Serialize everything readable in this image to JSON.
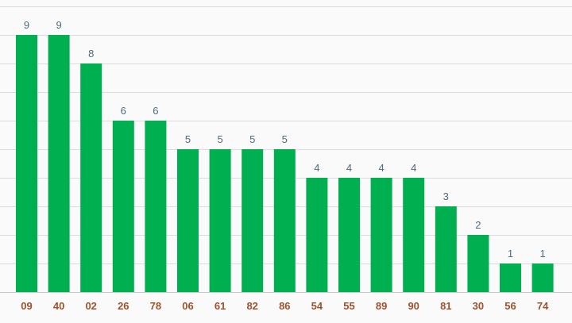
{
  "chart_data": {
    "type": "bar",
    "categories": [
      "09",
      "40",
      "02",
      "26",
      "78",
      "06",
      "61",
      "82",
      "86",
      "54",
      "55",
      "89",
      "90",
      "81",
      "30",
      "56",
      "74"
    ],
    "values": [
      9,
      9,
      8,
      6,
      6,
      5,
      5,
      5,
      5,
      4,
      4,
      4,
      4,
      3,
      2,
      1,
      1
    ],
    "title": "",
    "xlabel": "",
    "ylabel": "",
    "ylim": [
      0,
      10
    ],
    "grid": true,
    "legend": "none",
    "colors": {
      "bar": "#00af50",
      "value_label": "#4f6b7f",
      "tick_label": "#a0522d",
      "grid": "#dcdcdc",
      "background": "#fafafa"
    }
  }
}
